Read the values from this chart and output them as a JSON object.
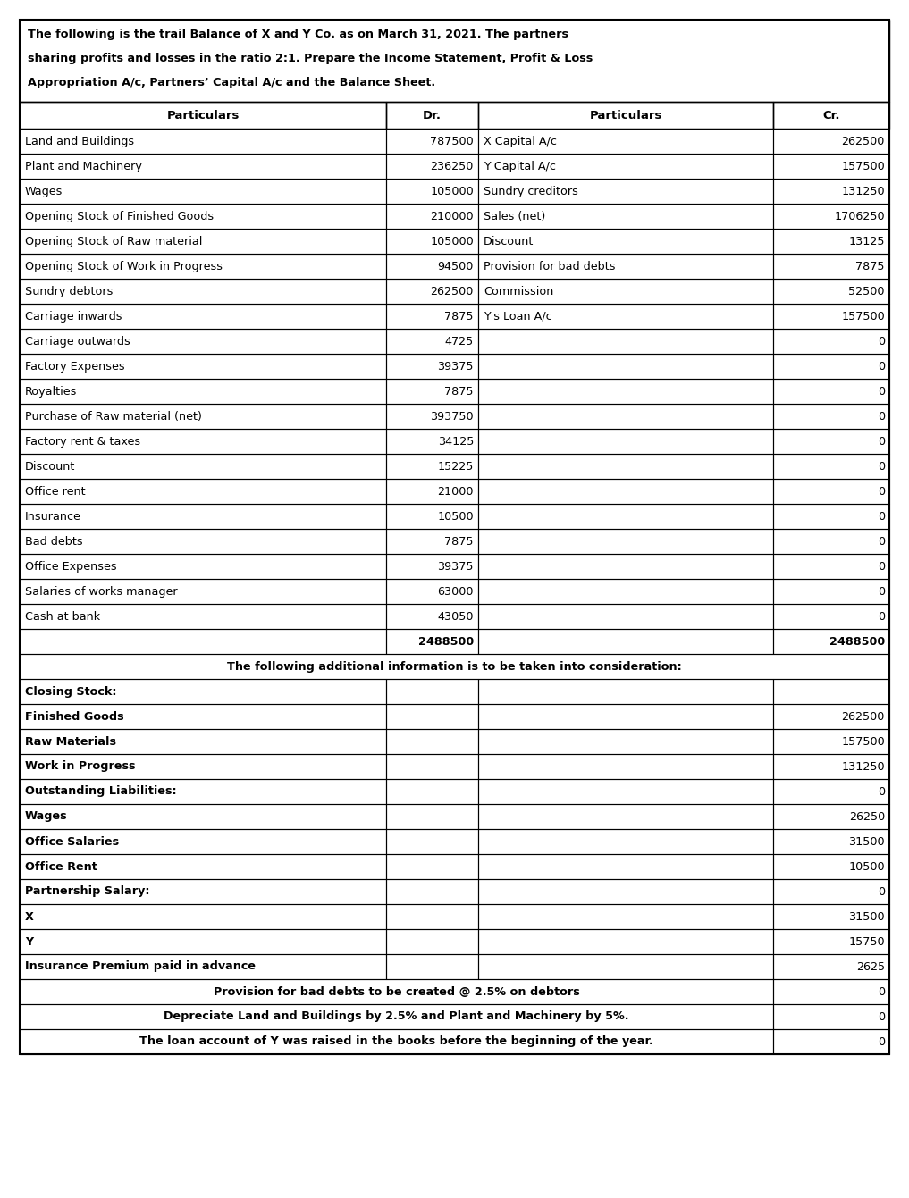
{
  "header_lines": [
    "The following is the trail Balance of X and Y Co. as on March 31, 2021. The partners",
    "sharing profits and losses in the ratio 2:1. Prepare the Income Statement, Profit & Loss",
    "Appropriation A/c, Partners’ Capital A/c and the Balance Sheet."
  ],
  "col_headers": [
    "Particulars",
    "Dr.",
    "Particulars",
    "Cr."
  ],
  "table_rows": [
    [
      "Land and Buildings",
      "787500",
      "X Capital A/c",
      "262500"
    ],
    [
      "Plant and Machinery",
      "236250",
      "Y Capital A/c",
      "157500"
    ],
    [
      "Wages",
      "105000",
      "Sundry creditors",
      "131250"
    ],
    [
      "Opening Stock of Finished Goods",
      "210000",
      "Sales (net)",
      "1706250"
    ],
    [
      "Opening Stock of Raw material",
      "105000",
      "Discount",
      "13125"
    ],
    [
      "Opening Stock of Work in Progress",
      "94500",
      "Provision for bad debts",
      "7875"
    ],
    [
      "Sundry debtors",
      "262500",
      "Commission",
      "52500"
    ],
    [
      "Carriage inwards",
      "7875",
      "Y's Loan A/c",
      "157500"
    ],
    [
      "Carriage outwards",
      "4725",
      "",
      "0"
    ],
    [
      "Factory Expenses",
      "39375",
      "",
      "0"
    ],
    [
      "Royalties",
      "7875",
      "",
      "0"
    ],
    [
      "Purchase of Raw material (net)",
      "393750",
      "",
      "0"
    ],
    [
      "Factory rent & taxes",
      "34125",
      "",
      "0"
    ],
    [
      "Discount",
      "15225",
      "",
      "0"
    ],
    [
      "Office rent",
      "21000",
      "",
      "0"
    ],
    [
      "Insurance",
      "10500",
      "",
      "0"
    ],
    [
      "Bad debts",
      "7875",
      "",
      "0"
    ],
    [
      "Office Expenses",
      "39375",
      "",
      "0"
    ],
    [
      "Salaries of works manager",
      "63000",
      "",
      "0"
    ],
    [
      "Cash at bank",
      "43050",
      "",
      "0"
    ],
    [
      "",
      "2488500",
      "",
      "2488500"
    ]
  ],
  "additional_info_header": "The following additional information is to be taken into consideration:",
  "additional_rows": [
    [
      "Closing Stock:",
      "",
      "",
      ""
    ],
    [
      "Finished Goods",
      "",
      "",
      "262500"
    ],
    [
      "Raw Materials",
      "",
      "",
      "157500"
    ],
    [
      "Work in Progress",
      "",
      "",
      "131250"
    ],
    [
      "Outstanding Liabilities:",
      "",
      "",
      "0"
    ],
    [
      "Wages",
      "",
      "",
      "26250"
    ],
    [
      "Office Salaries",
      "",
      "",
      "31500"
    ],
    [
      "Office Rent",
      "",
      "",
      "10500"
    ],
    [
      "Partnership Salary:",
      "",
      "",
      "0"
    ],
    [
      "X",
      "",
      "",
      "31500"
    ],
    [
      "Y",
      "",
      "",
      "15750"
    ],
    [
      "Insurance Premium paid in advance",
      "",
      "",
      "2625"
    ],
    [
      "Provision for bad debts to be created @ 2.5% on debtors",
      "",
      "",
      "0"
    ],
    [
      "Depreciate Land and Buildings by 2.5% and Plant and Machinery by 5%.",
      "",
      "",
      "0"
    ],
    [
      "The loan account of Y was raised in the books before the beginning of the year.",
      "",
      "",
      "0"
    ]
  ],
  "bold_additional_rows": [
    0,
    1,
    2,
    3,
    4,
    5,
    6,
    7,
    8,
    9,
    10,
    11
  ],
  "centered_additional_rows": [
    12,
    13,
    14
  ],
  "bg_color": "#ffffff",
  "text_color": "#000000"
}
